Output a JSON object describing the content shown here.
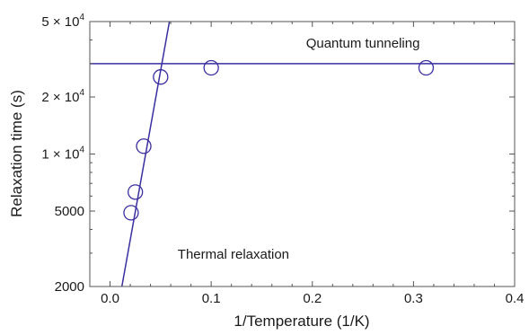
{
  "chart_data": {
    "type": "scatter",
    "xlabel": "1/Temperature (1/K)",
    "ylabel": "Relaxation time (s)",
    "xlim": [
      -0.02,
      0.4
    ],
    "ylim": [
      2000,
      50000
    ],
    "y_scale": "log",
    "grid": false,
    "x_ticks": [
      {
        "value": 0.0,
        "label": "0.0"
      },
      {
        "value": 0.1,
        "label": "0.1"
      },
      {
        "value": 0.2,
        "label": "0.2"
      },
      {
        "value": 0.3,
        "label": "0.3"
      },
      {
        "value": 0.4,
        "label": "0.4"
      }
    ],
    "y_ticks": [
      {
        "value": 2000,
        "mantissa": "2000",
        "exp": ""
      },
      {
        "value": 5000,
        "mantissa": "5000",
        "exp": ""
      },
      {
        "value": 10000,
        "mantissa": "1 × 10",
        "exp": "4"
      },
      {
        "value": 20000,
        "mantissa": "2 × 10",
        "exp": "4"
      },
      {
        "value": 50000,
        "mantissa": "5 × 10",
        "exp": "4"
      }
    ],
    "points": [
      {
        "x": 0.0208,
        "y": 4900
      },
      {
        "x": 0.025,
        "y": 6300
      },
      {
        "x": 0.0333,
        "y": 11000
      },
      {
        "x": 0.05,
        "y": 25500
      },
      {
        "x": 0.1,
        "y": 28500
      },
      {
        "x": 0.3125,
        "y": 28500
      }
    ],
    "fit_lines": [
      {
        "label": "Thermal relaxation",
        "x": [
          0.0117,
          0.0587
        ],
        "y": [
          2000,
          50000
        ]
      },
      {
        "label": "Quantum tunneling",
        "x": [
          -0.02,
          0.4
        ],
        "y": [
          30000,
          30000
        ]
      }
    ],
    "annotations": [
      {
        "text": "Quantum tunneling",
        "x": 0.25,
        "y": 36500
      },
      {
        "text": "Thermal relaxation",
        "x": 0.122,
        "y": 2800
      }
    ],
    "colors": {
      "series": "#3a2fa0",
      "axis": "#555555"
    }
  }
}
